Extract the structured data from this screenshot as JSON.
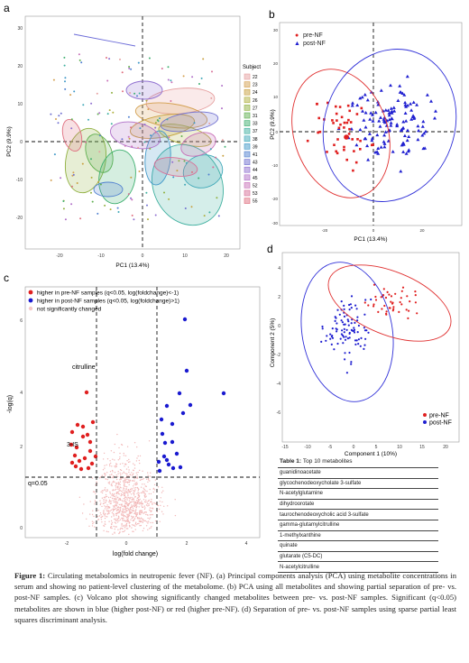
{
  "panels": {
    "a": {
      "letter": "a",
      "xlabel": "PC1 (13.4%)",
      "ylabel": "PC2 (9.9%)",
      "xticks": [
        "-20",
        "-10",
        "0",
        "10",
        "20"
      ],
      "yticks": [
        "30",
        "20",
        "10",
        "0",
        "-10",
        "-20"
      ],
      "legend_title": "Subject",
      "subjects": [
        "22",
        "23",
        "24",
        "26",
        "27",
        "31",
        "33",
        "37",
        "38",
        "39",
        "41",
        "43",
        "44",
        "45",
        "52",
        "53",
        "55"
      ],
      "colors": [
        "#e6a0a0",
        "#d4a050",
        "#c8a040",
        "#b0b040",
        "#90b040",
        "#60b050",
        "#40b070",
        "#40b0a0",
        "#40a8b8",
        "#4098c8",
        "#5080d0",
        "#7070d0",
        "#9070d0",
        "#b070c8",
        "#c870b8",
        "#d87098",
        "#e07080"
      ]
    },
    "b": {
      "letter": "b",
      "xlabel": "PC1 (13.4%)",
      "ylabel": "PC2 (9.9%)",
      "xticks": [
        "-20",
        "0",
        "20"
      ],
      "yticks": [
        "30",
        "20",
        "10",
        "0",
        "-10",
        "-20",
        "-30"
      ],
      "legend": [
        {
          "label": "pre-NF",
          "symbol": "●",
          "color": "#e02020"
        },
        {
          "label": "post-NF",
          "symbol": "▲",
          "color": "#2020d0"
        }
      ]
    },
    "c": {
      "letter": "c",
      "xlabel": "log(fold change)",
      "ylabel": "-log(q)",
      "xticks": [
        "-2",
        "0",
        "2",
        "4"
      ],
      "yticks": [
        "6",
        "4",
        "2",
        "0"
      ],
      "legend": [
        {
          "label": "higher in pre-NF samples (q<0.05, log(foldchange)<-1)",
          "color": "#e02020"
        },
        {
          "label": "higher in post-NF samples (q<0.05, log(foldchange)>1)",
          "color": "#1a1ad0"
        },
        {
          "label": "not significantly changed",
          "color": "#f4c8c8"
        }
      ],
      "annotations": {
        "citrulline": "citrulline",
        "three_is": "3-IS",
        "q_line": "q=0.05"
      }
    },
    "d": {
      "letter": "d",
      "xlabel": "Component 1 (10%)",
      "ylabel": "Component 2 (5%)",
      "xticks": [
        "-15",
        "-10",
        "-5",
        "0",
        "5",
        "10",
        "15",
        "20"
      ],
      "yticks": [
        "4",
        "2",
        "0",
        "-2",
        "-4",
        "-6"
      ],
      "legend": [
        {
          "label": "pre-NF",
          "color": "#e02020"
        },
        {
          "label": "post-NF",
          "color": "#2020d0"
        }
      ]
    }
  },
  "table": {
    "title_bold": "Table 1:",
    "title_rest": "Top 10 metabolites",
    "rows": [
      "guanidinoacetate",
      "glycochenodeoxycholate 3-sulfate",
      "N-acetylglutamine",
      "dihydroorotate",
      "taurochenodeoxycholic acid 3-sulfate",
      "gamma-glutamylcitrulline",
      "1-methylxanthine",
      "quinate",
      "glutarate (C5-DC)",
      "N-acetylcitrulline"
    ]
  },
  "caption": {
    "lead": "Figure 1:",
    "text": " Circulating metabolomics in neutropenic fever (NF). (a) Principal components analysis (PCA) using metabolite concentrations in serum and showing no patient-level clustering of the metabolome. (b) PCA using all metabolites and showing partial separation of pre- vs. post-NF samples. (c) Volcano plot showing significantly changed metabolites between pre- vs. post-NF samples. Significant (q<0.05) metabolites are shown in blue (higher post-NF) or red (higher pre-NF). (d) Separation of pre- vs. post-NF samples using sparse partial least squares discriminant analysis."
  }
}
